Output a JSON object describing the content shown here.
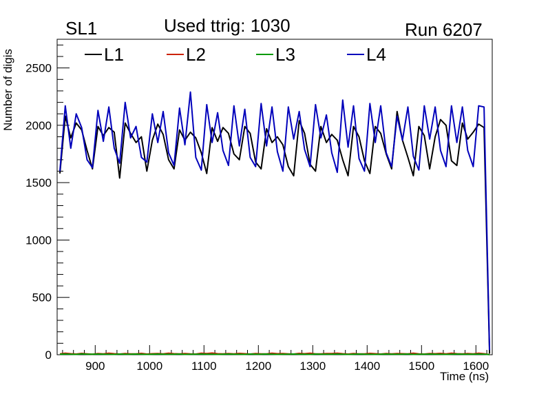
{
  "chart_data": {
    "type": "line",
    "header": {
      "superlayer": "SL1",
      "title": "Used ttrig: 1030",
      "run": "Run 6207"
    },
    "xlabel": "Time (ns)",
    "ylabel": "Number of digis",
    "xlim": [
      830,
      1630
    ],
    "ylim": [
      0,
      2750
    ],
    "xticks": [
      900,
      1000,
      1100,
      1200,
      1300,
      1400,
      1500,
      1600
    ],
    "yticks": [
      0,
      500,
      1000,
      1500,
      2000,
      2500
    ],
    "legend": [
      "L1",
      "L2",
      "L3",
      "L4"
    ],
    "colors": {
      "L1": "#000000",
      "L2": "#cc2200",
      "L3": "#009900",
      "L4": "#0000bb"
    },
    "x": [
      835,
      845,
      855,
      865,
      875,
      885,
      895,
      905,
      915,
      925,
      935,
      945,
      955,
      965,
      975,
      985,
      995,
      1005,
      1015,
      1025,
      1035,
      1045,
      1055,
      1065,
      1075,
      1085,
      1095,
      1105,
      1115,
      1125,
      1135,
      1145,
      1155,
      1165,
      1175,
      1185,
      1195,
      1205,
      1215,
      1225,
      1235,
      1245,
      1255,
      1265,
      1275,
      1285,
      1295,
      1305,
      1315,
      1325,
      1335,
      1345,
      1355,
      1365,
      1375,
      1385,
      1395,
      1405,
      1415,
      1425,
      1435,
      1445,
      1455,
      1465,
      1475,
      1485,
      1495,
      1505,
      1515,
      1525,
      1535,
      1545,
      1555,
      1565,
      1575,
      1585,
      1595,
      1605,
      1615,
      1625
    ],
    "series": [
      {
        "name": "L1",
        "values": [
          1580,
          2080,
          1890,
          2020,
          1960,
          1780,
          1620,
          1990,
          1910,
          1980,
          1940,
          1540,
          2020,
          1930,
          1850,
          1900,
          1600,
          1870,
          2010,
          1920,
          1700,
          1620,
          1960,
          1870,
          1940,
          1890,
          1760,
          1580,
          1980,
          1860,
          1980,
          1930,
          1750,
          1700,
          1990,
          1930,
          1680,
          1620,
          1970,
          1850,
          1900,
          1830,
          1640,
          1560,
          2040,
          1930,
          1660,
          1600,
          1990,
          1850,
          1920,
          1870,
          1700,
          1560,
          1990,
          1900,
          1690,
          1580,
          1990,
          1930,
          1750,
          1620,
          2120,
          1870,
          1720,
          1560,
          1990,
          1910,
          1620,
          1900,
          2050,
          2000,
          1690,
          1650,
          2020,
          1880,
          1940,
          2010,
          1980,
          10
        ]
      },
      {
        "name": "L2",
        "values": [
          8,
          14,
          9,
          6,
          12,
          8,
          5,
          10,
          7,
          13,
          9,
          6,
          11,
          8,
          7,
          12,
          6,
          9,
          10,
          8,
          14,
          9,
          7,
          11,
          8,
          6,
          13,
          10,
          15,
          9,
          7,
          10,
          8,
          12,
          9,
          6,
          11,
          8,
          7,
          13,
          9,
          10,
          8,
          6,
          12,
          9,
          14,
          8,
          7,
          10,
          11,
          13,
          9,
          6,
          10,
          8,
          7,
          12,
          9,
          6,
          10,
          8,
          11,
          9,
          7,
          13,
          8,
          6,
          10,
          9,
          12,
          8,
          14,
          9,
          7,
          11,
          8,
          13,
          9,
          2
        ]
      },
      {
        "name": "L3",
        "values": [
          4,
          6,
          5,
          3,
          7,
          4,
          5,
          6,
          4,
          5,
          3,
          6,
          4,
          5,
          6,
          4,
          3,
          5,
          6,
          4,
          5,
          4,
          6,
          3,
          5,
          4,
          6,
          5,
          4,
          3,
          5,
          6,
          4,
          5,
          3,
          6,
          4,
          5,
          6,
          4,
          3,
          5,
          4,
          6,
          5,
          4,
          3,
          6,
          4,
          5,
          4,
          6,
          5,
          3,
          4,
          6,
          5,
          4,
          3,
          5,
          6,
          4,
          5,
          4,
          6,
          3,
          5,
          4,
          6,
          5,
          4,
          3,
          5,
          6,
          4,
          5,
          4,
          6,
          5,
          1
        ]
      },
      {
        "name": "L4",
        "values": [
          1600,
          2170,
          1800,
          2100,
          1980,
          1700,
          1630,
          2130,
          1860,
          2160,
          1800,
          1670,
          2200,
          1890,
          1990,
          1720,
          1680,
          2100,
          1850,
          2120,
          1760,
          1650,
          2150,
          1830,
          2290,
          1720,
          1610,
          2180,
          1850,
          2110,
          1780,
          1650,
          2170,
          1820,
          2140,
          1720,
          1640,
          2190,
          1820,
          2160,
          1770,
          1600,
          2160,
          1880,
          2120,
          1790,
          1640,
          2180,
          1890,
          2090,
          1760,
          1590,
          2220,
          1810,
          2170,
          1710,
          1600,
          2190,
          1850,
          2170,
          1760,
          1640,
          2080,
          1870,
          2160,
          1730,
          1610,
          2170,
          1880,
          2160,
          1780,
          1640,
          2170,
          1850,
          2160,
          1780,
          1640,
          2170,
          2160,
          40
        ]
      }
    ]
  }
}
